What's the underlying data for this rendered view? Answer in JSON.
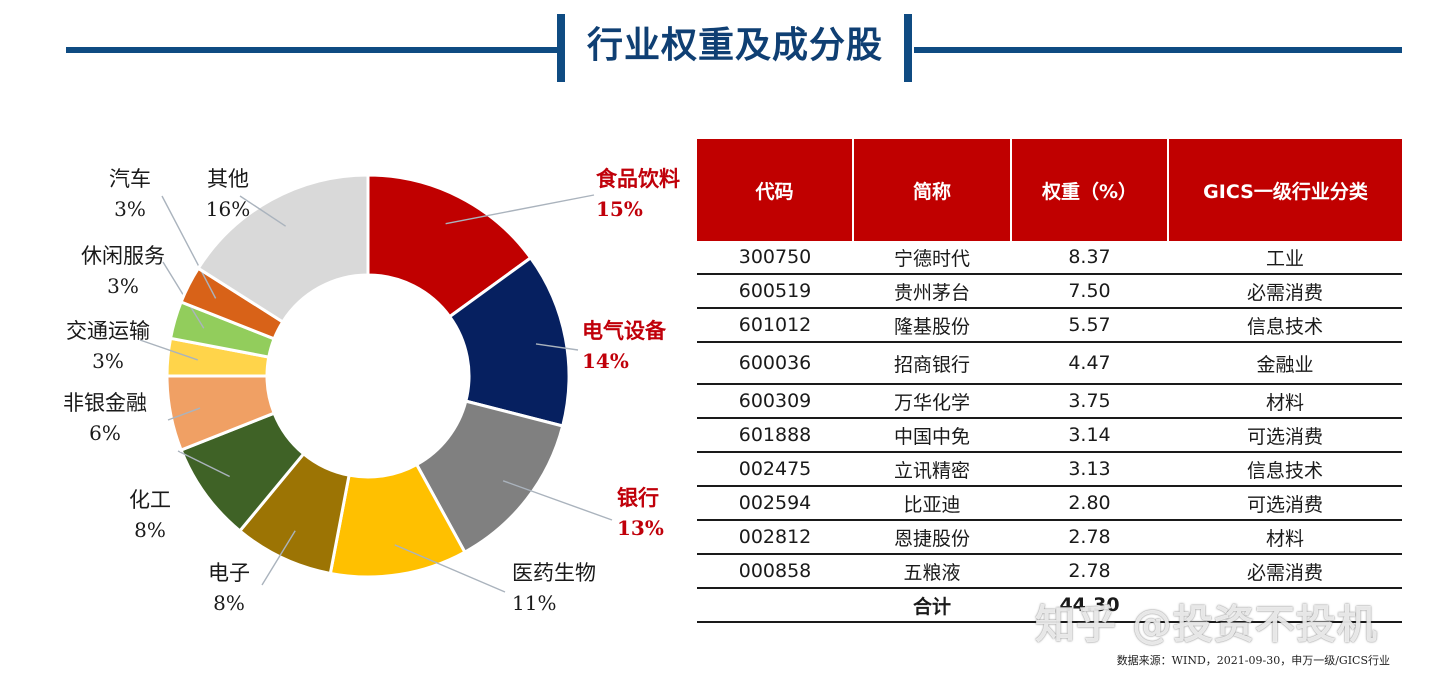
{
  "title": "行业权重及成分股",
  "chart_data": {
    "type": "pie",
    "donut": true,
    "slices": [
      {
        "name": "食品饮料",
        "label": "15%",
        "value": 15,
        "color": "#c00000",
        "highlight": true
      },
      {
        "name": "电气设备",
        "label": "14%",
        "value": 14,
        "color": "#062060",
        "highlight": true
      },
      {
        "name": "银行",
        "label": "13%",
        "value": 13,
        "color": "#808080",
        "highlight": true
      },
      {
        "name": "医药生物",
        "label": "11%",
        "value": 11,
        "color": "#ffc000",
        "highlight": false
      },
      {
        "name": "电子",
        "label": "8%",
        "value": 8,
        "color": "#9c7404",
        "highlight": false
      },
      {
        "name": "化工",
        "label": "8%",
        "value": 8,
        "color": "#3f6226",
        "highlight": false
      },
      {
        "name": "非银金融",
        "label": "6%",
        "value": 6,
        "color": "#f0a064",
        "highlight": false
      },
      {
        "name": "交通运输",
        "label": "3%",
        "value": 3,
        "color": "#ffd44a",
        "highlight": false
      },
      {
        "name": "休闲服务",
        "label": "3%",
        "value": 3,
        "color": "#92cd5c",
        "highlight": false
      },
      {
        "name": "汽车",
        "label": "3%",
        "value": 3,
        "color": "#d86218",
        "highlight": false
      },
      {
        "name": "其他",
        "label": "16%",
        "value": 16,
        "color": "#d9d9d9",
        "highlight": false
      }
    ]
  },
  "table": {
    "headers": [
      "代码",
      "简称",
      "权重（%）",
      "GICS一级行业分类"
    ],
    "rows": [
      [
        "300750",
        "宁德时代",
        "8.37",
        "工业"
      ],
      [
        "600519",
        "贵州茅台",
        "7.50",
        "必需消费"
      ],
      [
        "601012",
        "隆基股份",
        "5.57",
        "信息技术"
      ],
      [
        "600036",
        "招商银行",
        "4.47",
        "金融业"
      ],
      [
        "600309",
        "万华化学",
        "3.75",
        "材料"
      ],
      [
        "601888",
        "中国中免",
        "3.14",
        "可选消费"
      ],
      [
        "002475",
        "立讯精密",
        "3.13",
        "信息技术"
      ],
      [
        "002594",
        "比亚迪",
        "2.80",
        "可选消费"
      ],
      [
        "002812",
        "恩捷股份",
        "2.78",
        "材料"
      ],
      [
        "000858",
        "五粮液",
        "2.78",
        "必需消费"
      ]
    ],
    "total_label": "合计",
    "total_value": "44.30"
  },
  "source": "数据来源：WIND，2021-09-30，申万一级/GICS行业",
  "watermark": "知乎 @投资不投机"
}
